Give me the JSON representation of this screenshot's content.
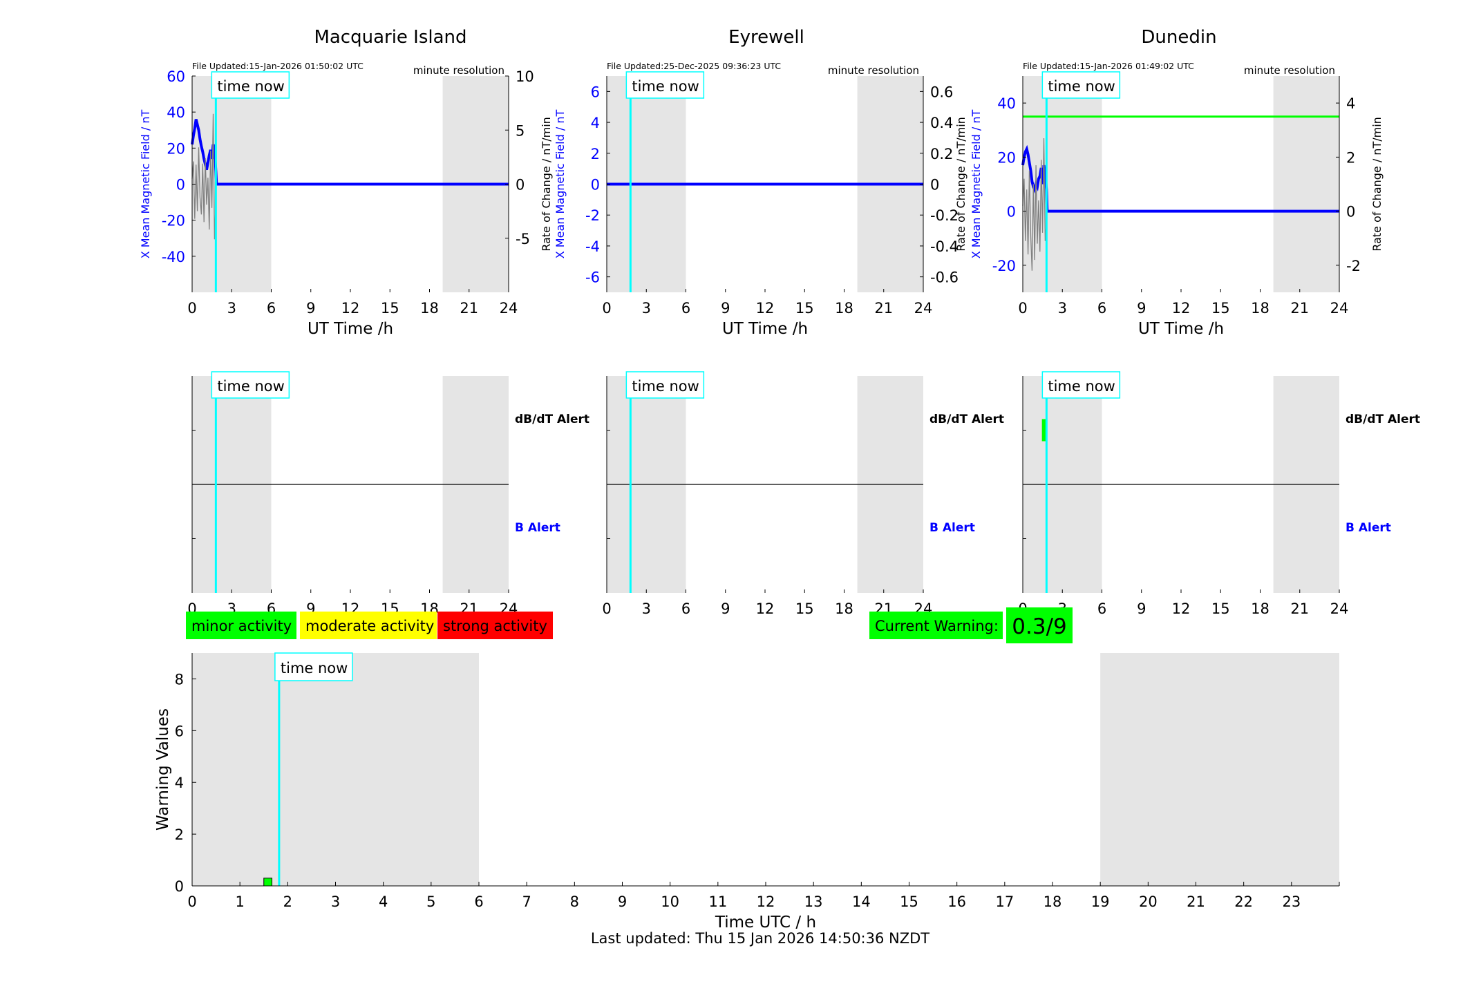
{
  "legend": {
    "minor": "minor activity",
    "moderate": "moderate activity",
    "strong": "strong activity",
    "minor_color": "#00ff00",
    "moderate_color": "#ffff00",
    "strong_color": "#ff0000"
  },
  "current_warning": {
    "label": "Current Warning:",
    "value": "0.3/9",
    "color": "#00ff00"
  },
  "footer": {
    "last_updated": "Last updated: Thu 15 Jan 2026 14:50:36 NZDT"
  },
  "colors": {
    "shade": "#e5e5e5",
    "time_now": "#00ffff",
    "field": "#0000ff",
    "rate": "#808080",
    "threshold": "#00ff00",
    "b_alert": "#0000ff"
  },
  "chart_data": [
    {
      "type": "line",
      "station": "Macquarie Island",
      "title": "Macquarie Island",
      "file_updated": "File Updated:15-Jan-2026 01:50:02 UTC",
      "resolution": "minute resolution",
      "time_now_label": "time now",
      "xlabel": "UT Time /h",
      "ylabel_left": "X Mean Magnetic Field / nT",
      "ylabel_right": "Rate of Change / nT/min",
      "xlim": [
        0,
        24
      ],
      "ylim_left": [
        -60,
        60
      ],
      "ylim_right": [
        -10,
        10
      ],
      "xticks": [
        0,
        3,
        6,
        9,
        12,
        15,
        18,
        21,
        24
      ],
      "yticks_left": [
        -40,
        -20,
        0,
        20,
        40,
        60
      ],
      "yticks_right": [
        -5,
        0,
        5,
        10
      ],
      "time_now": 1.8,
      "shaded_hours": [
        [
          0,
          6
        ],
        [
          19,
          24
        ]
      ],
      "series": [
        {
          "name": "",
          "axis": "left",
          "color": "#0000ff",
          "x": [
            0,
            0.1,
            0.2,
            0.3,
            0.4,
            0.5,
            0.6,
            0.7,
            0.8,
            0.9,
            1.0,
            1.1,
            1.2,
            1.3,
            1.4,
            1.5,
            1.6,
            1.7,
            1.8,
            1.85,
            24
          ],
          "y": [
            22,
            27,
            31,
            36,
            33,
            30,
            25,
            21,
            18,
            14,
            11,
            8,
            12,
            16,
            19,
            14,
            22,
            20,
            7,
            0,
            0
          ]
        },
        {
          "name": "",
          "axis": "right",
          "color": "#808080",
          "x": [
            0,
            0.1,
            0.2,
            0.3,
            0.4,
            0.5,
            0.6,
            0.7,
            0.8,
            0.9,
            1.0,
            1.1,
            1.2,
            1.3,
            1.4,
            1.5,
            1.6,
            1.7,
            1.8
          ],
          "y": [
            0.5,
            2.1,
            -3.2,
            1.8,
            -2.5,
            3.4,
            -1.2,
            -2.8,
            1.9,
            -3.5,
            2.4,
            -1.9,
            0.6,
            -4.2,
            3.1,
            -2.2,
            6.5,
            -5.1,
            -1.4
          ]
        }
      ]
    },
    {
      "type": "line",
      "station": "Eyrewell",
      "title": "Eyrewell",
      "file_updated": "File Updated:25-Dec-2025 09:36:23 UTC",
      "resolution": "minute resolution",
      "time_now_label": "time now",
      "xlabel": "UT Time /h",
      "ylabel_left": "X Mean Magnetic Field / nT",
      "ylabel_right": "Rate of Change / nT/min",
      "xlim": [
        0,
        24
      ],
      "ylim_left": [
        -7,
        7
      ],
      "ylim_right": [
        -0.7,
        0.7
      ],
      "xticks": [
        0,
        3,
        6,
        9,
        12,
        15,
        18,
        21,
        24
      ],
      "yticks_left": [
        -6,
        -4,
        -2,
        0,
        2,
        4,
        6
      ],
      "yticks_right": [
        -0.6,
        -0.4,
        -0.2,
        0,
        0.2,
        0.4,
        0.6
      ],
      "time_now": 1.8,
      "shaded_hours": [
        [
          0,
          6
        ],
        [
          19,
          24
        ]
      ],
      "series": [
        {
          "name": "",
          "axis": "left",
          "color": "#0000ff",
          "x": [
            0,
            24
          ],
          "y": [
            0,
            0
          ]
        }
      ]
    },
    {
      "type": "line",
      "station": "Dunedin",
      "title": "Dunedin",
      "file_updated": "File Updated:15-Jan-2026 01:49:02 UTC",
      "resolution": "minute resolution",
      "time_now_label": "time now",
      "xlabel": "UT Time /h",
      "ylabel_left": "X Mean Magnetic Field / nT",
      "ylabel_right": "Rate of Change / nT/min",
      "xlim": [
        0,
        24
      ],
      "ylim_left": [
        -30,
        50
      ],
      "ylim_right": [
        -3,
        5
      ],
      "xticks": [
        0,
        3,
        6,
        9,
        12,
        15,
        18,
        21,
        24
      ],
      "yticks_left": [
        -20,
        0,
        20,
        40
      ],
      "yticks_right": [
        -2,
        0,
        2,
        4
      ],
      "time_now": 1.8,
      "threshold_right": 3.5,
      "shaded_hours": [
        [
          0,
          6
        ],
        [
          19,
          24
        ]
      ],
      "series": [
        {
          "name": "",
          "axis": "left",
          "color": "#0000ff",
          "x": [
            0,
            0.1,
            0.2,
            0.3,
            0.4,
            0.5,
            0.6,
            0.7,
            0.8,
            0.9,
            1.0,
            1.1,
            1.2,
            1.3,
            1.4,
            1.5,
            1.6,
            1.7,
            1.8,
            1.85,
            24
          ],
          "y": [
            17,
            20,
            22,
            23,
            21,
            18,
            15,
            11,
            9,
            8,
            10,
            9,
            12,
            13,
            16,
            10,
            17,
            14,
            8,
            0,
            0
          ]
        },
        {
          "name": "",
          "axis": "right",
          "color": "#808080",
          "x": [
            0,
            0.1,
            0.2,
            0.3,
            0.4,
            0.5,
            0.6,
            0.7,
            0.8,
            0.9,
            1.0,
            1.1,
            1.2,
            1.3,
            1.4,
            1.5,
            1.6,
            1.7,
            1.8
          ],
          "y": [
            0.2,
            1.2,
            -1.1,
            0.8,
            -1.6,
            1.5,
            -0.9,
            -2.2,
            1.0,
            -1.8,
            1.7,
            -1.2,
            0.4,
            -1.5,
            1.9,
            -0.8,
            2.7,
            -1.1,
            -0.4
          ]
        }
      ]
    },
    {
      "type": "bar",
      "station": "Macquarie Island",
      "time_now_label": "time now",
      "alert_top_label": "dB/dT Alert",
      "alert_bottom_label": "B Alert",
      "xlim": [
        0,
        24
      ],
      "xticks": [
        0,
        3,
        6,
        9,
        12,
        15,
        18,
        21,
        24
      ],
      "time_now": 1.8,
      "shaded_hours": [
        [
          0,
          6
        ],
        [
          19,
          24
        ]
      ],
      "alerts": []
    },
    {
      "type": "bar",
      "station": "Eyrewell",
      "time_now_label": "time now",
      "alert_top_label": "dB/dT Alert",
      "alert_bottom_label": "B Alert",
      "xlim": [
        0,
        24
      ],
      "xticks": [
        0,
        3,
        6,
        9,
        12,
        15,
        18,
        21,
        24
      ],
      "time_now": 1.8,
      "shaded_hours": [
        [
          0,
          6
        ],
        [
          19,
          24
        ]
      ],
      "alerts": []
    },
    {
      "type": "bar",
      "station": "Dunedin",
      "time_now_label": "time now",
      "alert_top_label": "dB/dT Alert",
      "alert_bottom_label": "B Alert",
      "xlim": [
        0,
        24
      ],
      "xticks": [
        0,
        3,
        6,
        9,
        12,
        15,
        18,
        21,
        24
      ],
      "time_now": 1.8,
      "shaded_hours": [
        [
          0,
          6
        ],
        [
          19,
          24
        ]
      ],
      "alerts": [
        {
          "kind": "dB/dT",
          "start": 1.45,
          "end": 1.8,
          "level": 0.5,
          "color": "#00ff00"
        }
      ]
    },
    {
      "type": "bar",
      "title": "",
      "time_now_label": "time now",
      "xlabel": "Time UTC / h",
      "ylabel": "Warning Values",
      "xlim": [
        0,
        24
      ],
      "ylim": [
        0,
        9
      ],
      "xticks": [
        0,
        1,
        2,
        3,
        4,
        5,
        6,
        7,
        8,
        9,
        10,
        11,
        12,
        13,
        14,
        15,
        16,
        17,
        18,
        19,
        20,
        21,
        22,
        23
      ],
      "yticks": [
        0,
        2,
        4,
        6,
        8
      ],
      "time_now": 1.82,
      "shaded_hours": [
        [
          0,
          6
        ],
        [
          19,
          24
        ]
      ],
      "bars": [
        {
          "start": 1.5,
          "end": 1.67,
          "value": 0.3,
          "color": "#00ff00"
        }
      ]
    }
  ]
}
